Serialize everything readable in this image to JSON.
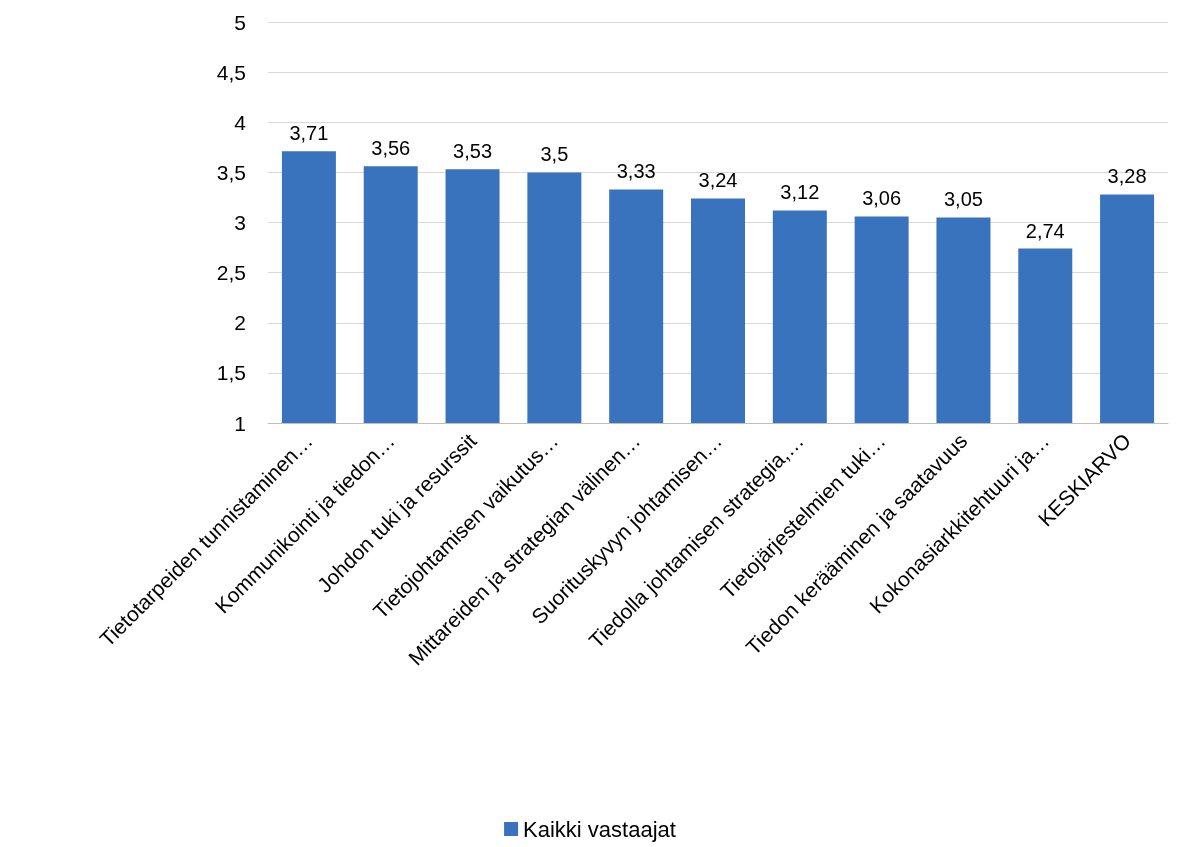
{
  "chart_data": {
    "type": "bar",
    "categories": [
      "Tietotarpeiden tunnistaminen…",
      "Kommunikointi ja tiedon…",
      "Johdon tuki ja resurssit",
      "Tietojohtamisen vaikutus…",
      "Mittareiden ja strategian välinen…",
      "Suorituskyvyn johtamisen…",
      "Tiedolla johtamisen strategia,…",
      "Tietojärjestelmien tuki…",
      "Tiedon kerääminen ja saatavuus",
      "Kokonasiarkkitehtuuri ja…",
      "KESKIARVO"
    ],
    "series": [
      {
        "name": "Kaikki vastaajat",
        "color": "#3a73bd",
        "values": [
          3.71,
          3.56,
          3.53,
          3.5,
          3.33,
          3.24,
          3.12,
          3.06,
          3.05,
          2.74,
          3.28
        ],
        "value_labels": [
          "3,71",
          "3,56",
          "3,53",
          "3,5",
          "3,33",
          "3,24",
          "3,12",
          "3,06",
          "3,05",
          "2,74",
          "3,28"
        ]
      }
    ],
    "ylim": [
      1,
      5
    ],
    "yticks": [
      1,
      {
        "value": 1.5,
        "label": "1,5"
      },
      2,
      {
        "value": 2.5,
        "label": "2,5"
      },
      3,
      {
        "value": 3.5,
        "label": "3,5"
      },
      4,
      {
        "value": 4.5,
        "label": "4,5"
      },
      5
    ],
    "grid": "y",
    "legend": "bottom"
  }
}
